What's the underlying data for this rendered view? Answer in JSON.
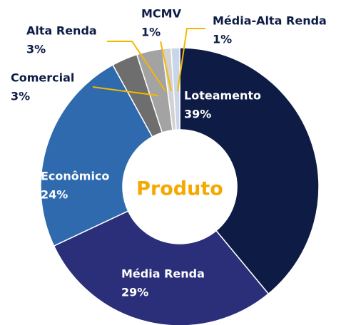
{
  "chart_data": {
    "type": "donut",
    "title": "Produto",
    "categories": [
      "Loteamento",
      "Média Renda",
      "Econômico",
      "Comercial",
      "Alta Renda",
      "MCMV",
      "Média-Alta Renda"
    ],
    "values": [
      39,
      29,
      24,
      3,
      3,
      1,
      1
    ],
    "value_labels": [
      "39%",
      "29%",
      "24%",
      "3%",
      "3%",
      "1%",
      "1%"
    ],
    "colors": [
      "#0d1b45",
      "#2b2f7a",
      "#2e6aad",
      "#6e6e6e",
      "#a3a3a3",
      "#d2d2d2",
      "#c9d5e8"
    ]
  }
}
